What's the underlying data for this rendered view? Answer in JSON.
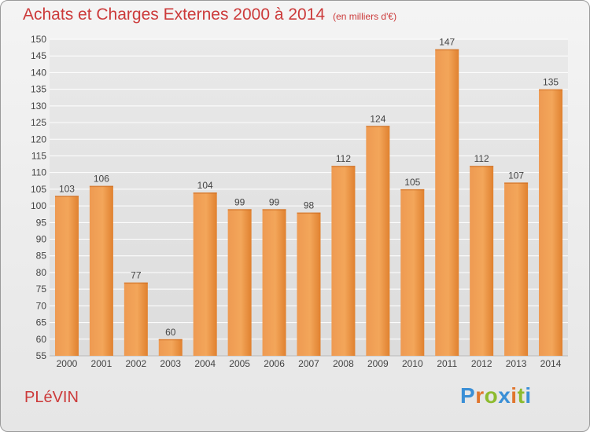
{
  "header": {
    "title": "Achats et Charges Externes 2000 à 2014",
    "subtitle": "(en milliers d'€)"
  },
  "footer": {
    "commune": "PLéVIN",
    "logo_text": "Proxiti",
    "logo_colors": [
      "#3a8fd6",
      "#e0752d",
      "#8dbb2f",
      "#3a8fd6",
      "#e0752d",
      "#8dbb2f",
      "#3a8fd6"
    ]
  },
  "chart_data": {
    "type": "bar",
    "categories": [
      "2000",
      "2001",
      "2002",
      "2003",
      "2004",
      "2005",
      "2006",
      "2007",
      "2008",
      "2009",
      "2010",
      "2011",
      "2012",
      "2013",
      "2014"
    ],
    "values": [
      103,
      106,
      77,
      60,
      104,
      99,
      99,
      98,
      112,
      124,
      105,
      147,
      112,
      107,
      135
    ],
    "ylim": [
      55,
      150
    ],
    "yticks": [
      55,
      60,
      65,
      70,
      75,
      80,
      85,
      90,
      95,
      100,
      105,
      110,
      115,
      120,
      125,
      130,
      135,
      140,
      145,
      150
    ],
    "grid": true,
    "bar_color": "#e8863a",
    "bar_color_dark": "#d86e1f"
  }
}
